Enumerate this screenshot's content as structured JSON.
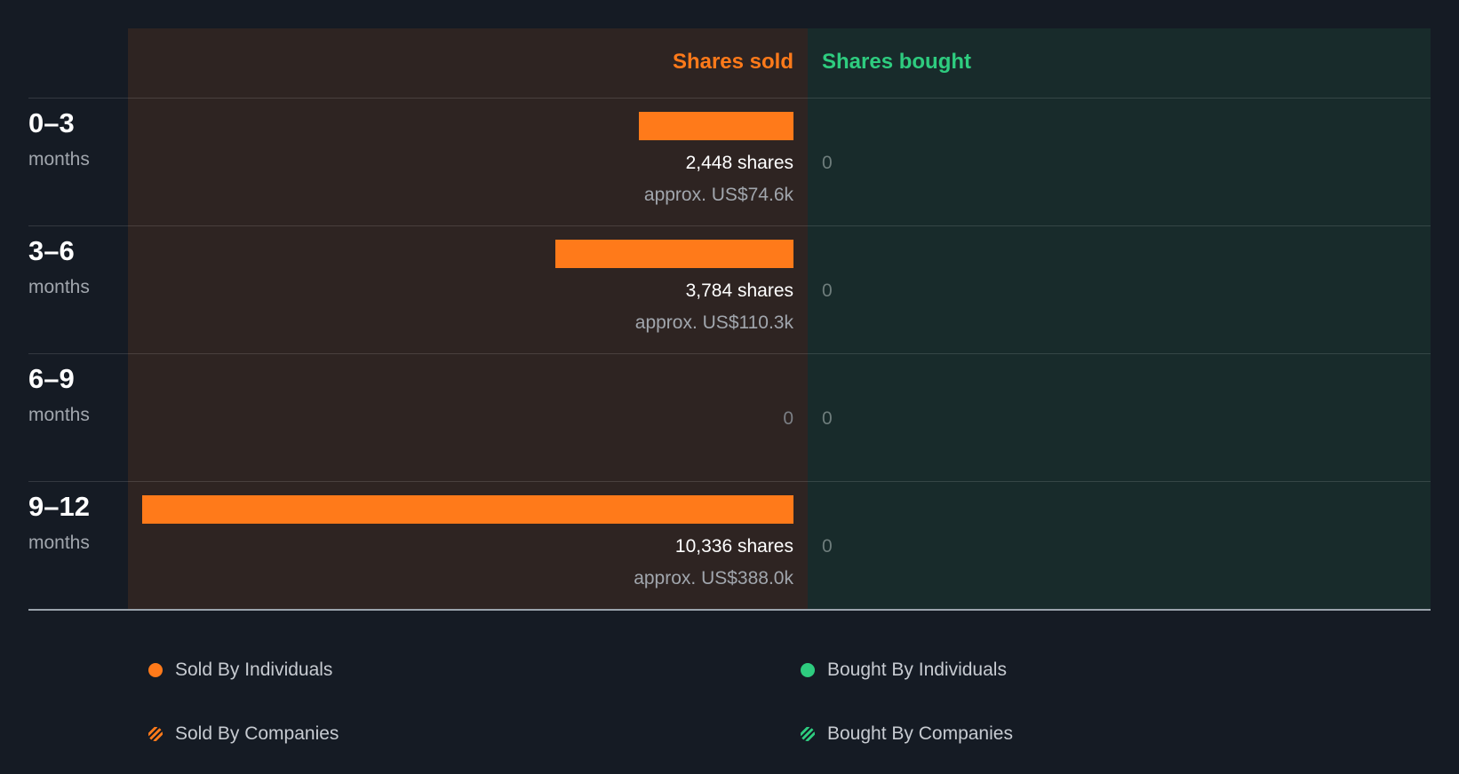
{
  "headers": {
    "sold": "Shares sold",
    "bought": "Shares bought"
  },
  "colors": {
    "sold": "#ff7a1a",
    "bought": "#2ecc7f",
    "background": "#151b24"
  },
  "rows": [
    {
      "period": "0–3",
      "unit": "months",
      "shares": "2,448 shares",
      "approx": "approx. US$74.6k",
      "sold_zero": "",
      "bought_zero": "0"
    },
    {
      "period": "3–6",
      "unit": "months",
      "shares": "3,784 shares",
      "approx": "approx. US$110.3k",
      "sold_zero": "",
      "bought_zero": "0"
    },
    {
      "period": "6–9",
      "unit": "months",
      "shares": "",
      "approx": "",
      "sold_zero": "0",
      "bought_zero": "0"
    },
    {
      "period": "9–12",
      "unit": "months",
      "shares": "10,336 shares",
      "approx": "approx. US$388.0k",
      "sold_zero": "",
      "bought_zero": "0"
    }
  ],
  "legend": {
    "sold_individuals": "Sold By Individuals",
    "bought_individuals": "Bought By Individuals",
    "sold_companies": "Sold By Companies",
    "bought_companies": "Bought By Companies"
  },
  "chart_data": {
    "type": "bar",
    "orientation": "horizontal",
    "categories": [
      "0–3 months",
      "3–6 months",
      "6–9 months",
      "9–12 months"
    ],
    "series": [
      {
        "name": "Shares sold",
        "values": [
          2448,
          3784,
          0,
          10336
        ],
        "value_usd": [
          "US$74.6k",
          "US$110.3k",
          "",
          "US$388.0k"
        ]
      },
      {
        "name": "Shares bought",
        "values": [
          0,
          0,
          0,
          0
        ]
      }
    ],
    "xlim": [
      0,
      10336
    ],
    "legend": [
      "Sold By Individuals",
      "Bought By Individuals",
      "Sold By Companies",
      "Bought By Companies"
    ],
    "legend_position": "bottom",
    "grid": false
  }
}
